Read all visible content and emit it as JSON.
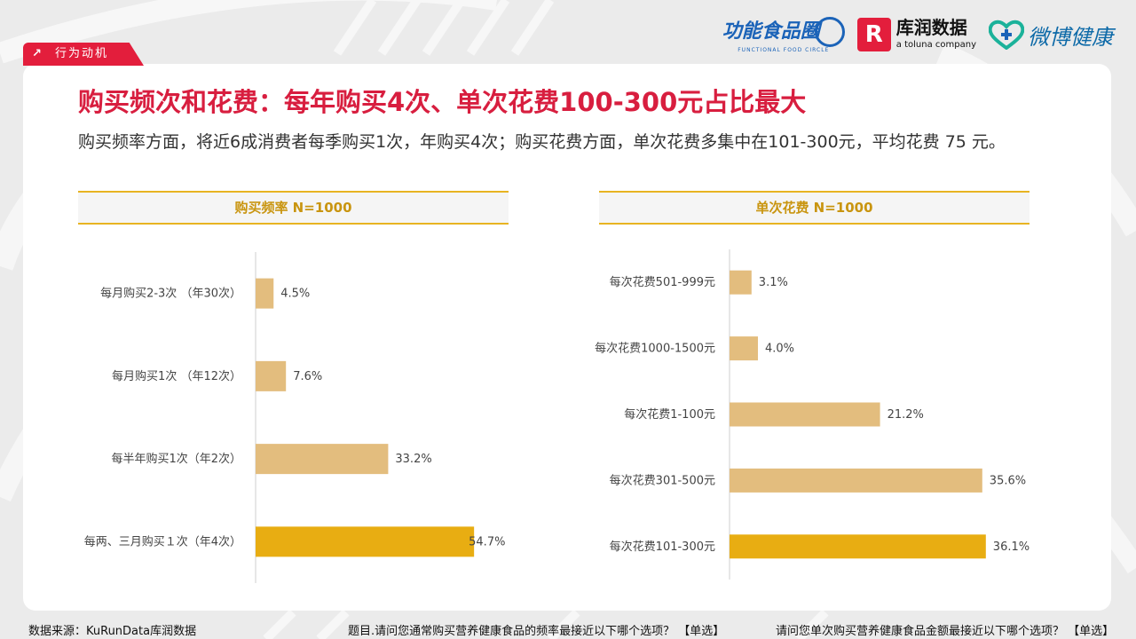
{
  "tag": {
    "label": "行为动机",
    "icon": "arrow-up-right-icon"
  },
  "logos": {
    "food_circle": {
      "name": "功能食品圈",
      "sub": "FUNCTIONAL FOOD CIRCLE"
    },
    "kurun": {
      "mark": "R",
      "name": "库润数据",
      "sub": "a toluna company"
    },
    "weibo": {
      "name": "微博健康",
      "icon": "heart-plus-icon"
    }
  },
  "title": "购买频次和花费：每年购买4次、单次花费100-300元占比最大",
  "subtitle": "购买频率方面，将近6成消费者每季购买1次，年购买4次；购买花费方面，单次花费多集中在101-300元，平均花费 75 元。",
  "colors": {
    "accent": "#e31e3c",
    "bar": "#e3bd7e",
    "bar_highlight": "#e8ad12",
    "header_line": "#e8b422"
  },
  "chart_data": [
    {
      "type": "bar",
      "orientation": "horizontal",
      "title": "购买频率 N=1000",
      "categories": [
        "每月购买2-3次 （年30次）",
        "每月购买1次 （年12次）",
        "每半年购买1次（年2次）",
        "每两、三月购买１次（年4次）"
      ],
      "values": [
        4.5,
        7.6,
        33.2,
        54.7
      ],
      "labels": [
        "4.5%",
        "7.6%",
        "33.2%",
        "54.7%"
      ],
      "highlight": [
        false,
        false,
        false,
        true
      ],
      "xlim": [
        0,
        60
      ],
      "unit": "%"
    },
    {
      "type": "bar",
      "orientation": "horizontal",
      "title": "单次花费 N=1000",
      "categories": [
        "每次花费501-999元",
        "每次花费1000-1500元",
        "每次花费1-100元",
        "每次花费301-500元",
        "每次花费101-300元"
      ],
      "values": [
        3.1,
        4.0,
        21.2,
        35.6,
        36.1
      ],
      "labels": [
        "3.1%",
        "4.0%",
        "21.2%",
        "35.6%",
        "36.1%"
      ],
      "highlight": [
        false,
        false,
        false,
        false,
        true
      ],
      "xlim": [
        0,
        40
      ],
      "unit": "%"
    }
  ],
  "footer": {
    "source": "数据来源：KuRunData库润数据",
    "question1": "题目.请问您通常购买营养健康食品的频率最接近以下哪个选项？ 【单选】",
    "question2": "请问您单次购买营养健康食品金额最接近以下哪个选项？ 【单选】"
  }
}
